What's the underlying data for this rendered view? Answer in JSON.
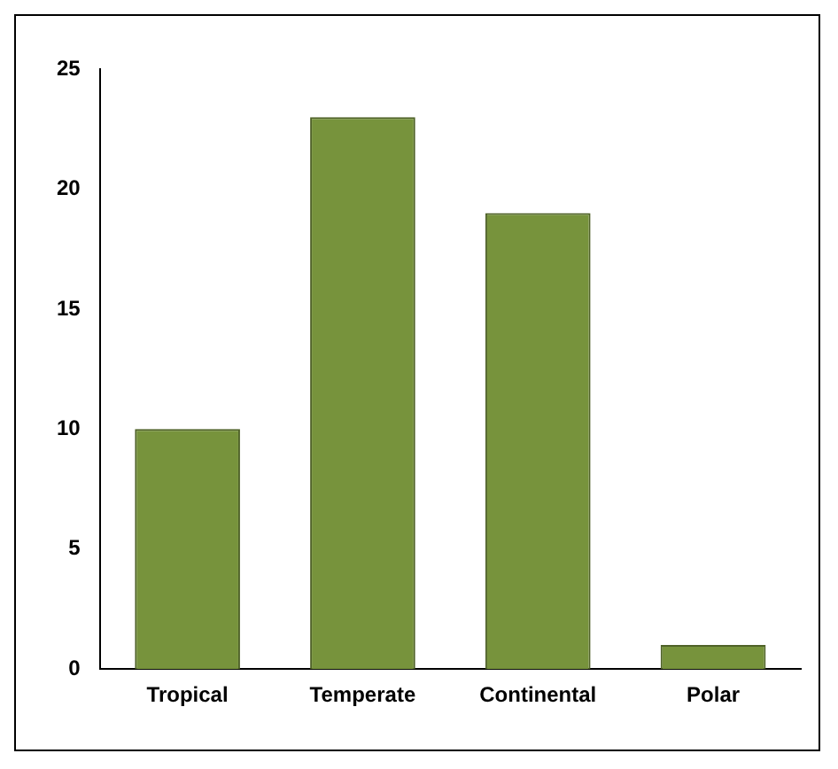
{
  "chart_data": {
    "type": "bar",
    "categories": [
      "Tropical",
      "Temperate",
      "Continental",
      "Polar"
    ],
    "values": [
      10,
      23,
      19,
      1
    ],
    "color": "#77933c",
    "ylim": [
      0,
      25
    ],
    "yticks": [
      0,
      5,
      10,
      15,
      20,
      25
    ],
    "grid": false,
    "legend": false
  }
}
